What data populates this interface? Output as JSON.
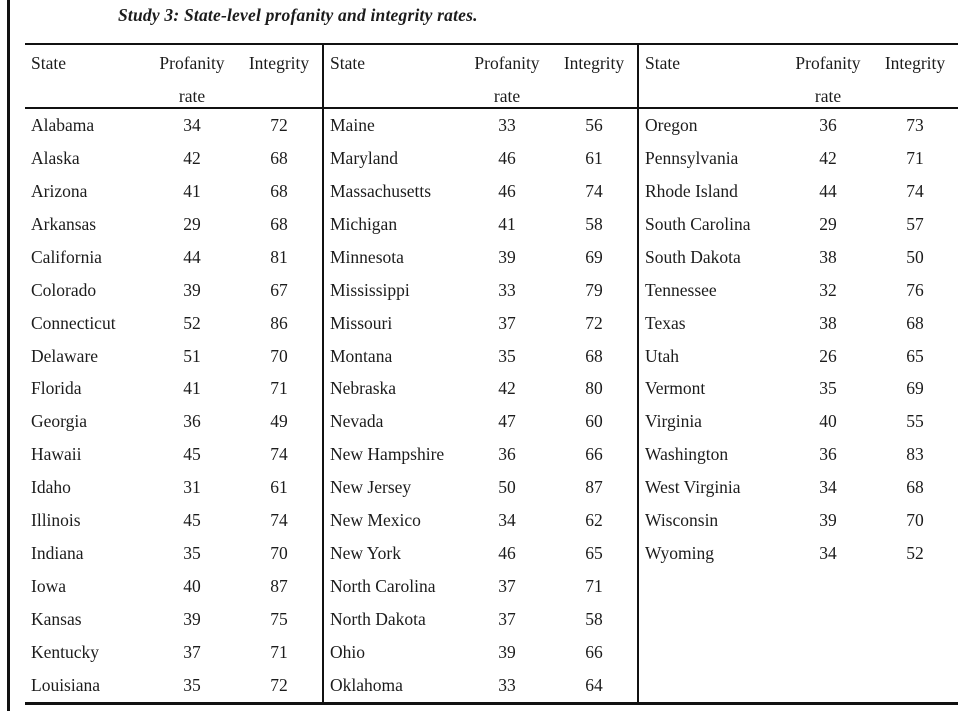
{
  "title": "Study 3: State-level profanity and integrity rates.",
  "colors": {
    "text": "#1c1c1c",
    "rule": "#111111",
    "background": "#ffffff"
  },
  "table": {
    "headers": {
      "state": "State",
      "profanity": "Profanity",
      "rate": "rate",
      "integrity": "Integrity"
    },
    "groups": [
      {
        "rows": [
          {
            "state": "Alabama",
            "profanity": 34,
            "integrity": 72
          },
          {
            "state": "Alaska",
            "profanity": 42,
            "integrity": 68
          },
          {
            "state": "Arizona",
            "profanity": 41,
            "integrity": 68
          },
          {
            "state": "Arkansas",
            "profanity": 29,
            "integrity": 68
          },
          {
            "state": "California",
            "profanity": 44,
            "integrity": 81
          },
          {
            "state": "Colorado",
            "profanity": 39,
            "integrity": 67
          },
          {
            "state": "Connecticut",
            "profanity": 52,
            "integrity": 86
          },
          {
            "state": "Delaware",
            "profanity": 51,
            "integrity": 70
          },
          {
            "state": "Florida",
            "profanity": 41,
            "integrity": 71
          },
          {
            "state": "Georgia",
            "profanity": 36,
            "integrity": 49
          },
          {
            "state": "Hawaii",
            "profanity": 45,
            "integrity": 74
          },
          {
            "state": "Idaho",
            "profanity": 31,
            "integrity": 61
          },
          {
            "state": "Illinois",
            "profanity": 45,
            "integrity": 74
          },
          {
            "state": "Indiana",
            "profanity": 35,
            "integrity": 70
          },
          {
            "state": "Iowa",
            "profanity": 40,
            "integrity": 87
          },
          {
            "state": "Kansas",
            "profanity": 39,
            "integrity": 75
          },
          {
            "state": "Kentucky",
            "profanity": 37,
            "integrity": 71
          },
          {
            "state": "Louisiana",
            "profanity": 35,
            "integrity": 72
          }
        ]
      },
      {
        "rows": [
          {
            "state": "Maine",
            "profanity": 33,
            "integrity": 56
          },
          {
            "state": "Maryland",
            "profanity": 46,
            "integrity": 61
          },
          {
            "state": "Massachusetts",
            "profanity": 46,
            "integrity": 74
          },
          {
            "state": "Michigan",
            "profanity": 41,
            "integrity": 58
          },
          {
            "state": "Minnesota",
            "profanity": 39,
            "integrity": 69
          },
          {
            "state": "Mississippi",
            "profanity": 33,
            "integrity": 79
          },
          {
            "state": "Missouri",
            "profanity": 37,
            "integrity": 72
          },
          {
            "state": "Montana",
            "profanity": 35,
            "integrity": 68
          },
          {
            "state": "Nebraska",
            "profanity": 42,
            "integrity": 80
          },
          {
            "state": "Nevada",
            "profanity": 47,
            "integrity": 60
          },
          {
            "state": "New Hampshire",
            "profanity": 36,
            "integrity": 66
          },
          {
            "state": "New Jersey",
            "profanity": 50,
            "integrity": 87
          },
          {
            "state": "New Mexico",
            "profanity": 34,
            "integrity": 62
          },
          {
            "state": "New York",
            "profanity": 46,
            "integrity": 65
          },
          {
            "state": "North Carolina",
            "profanity": 37,
            "integrity": 71
          },
          {
            "state": "North Dakota",
            "profanity": 37,
            "integrity": 58
          },
          {
            "state": "Ohio",
            "profanity": 39,
            "integrity": 66
          },
          {
            "state": "Oklahoma",
            "profanity": 33,
            "integrity": 64
          }
        ]
      },
      {
        "rows": [
          {
            "state": "Oregon",
            "profanity": 36,
            "integrity": 73
          },
          {
            "state": "Pennsylvania",
            "profanity": 42,
            "integrity": 71
          },
          {
            "state": "Rhode Island",
            "profanity": 44,
            "integrity": 74
          },
          {
            "state": "South Carolina",
            "profanity": 29,
            "integrity": 57
          },
          {
            "state": "South Dakota",
            "profanity": 38,
            "integrity": 50
          },
          {
            "state": "Tennessee",
            "profanity": 32,
            "integrity": 76
          },
          {
            "state": "Texas",
            "profanity": 38,
            "integrity": 68
          },
          {
            "state": "Utah",
            "profanity": 26,
            "integrity": 65
          },
          {
            "state": "Vermont",
            "profanity": 35,
            "integrity": 69
          },
          {
            "state": "Virginia",
            "profanity": 40,
            "integrity": 55
          },
          {
            "state": "Washington",
            "profanity": 36,
            "integrity": 83
          },
          {
            "state": "West Virginia",
            "profanity": 34,
            "integrity": 68
          },
          {
            "state": "Wisconsin",
            "profanity": 39,
            "integrity": 70
          },
          {
            "state": "Wyoming",
            "profanity": 34,
            "integrity": 52
          }
        ]
      }
    ]
  }
}
